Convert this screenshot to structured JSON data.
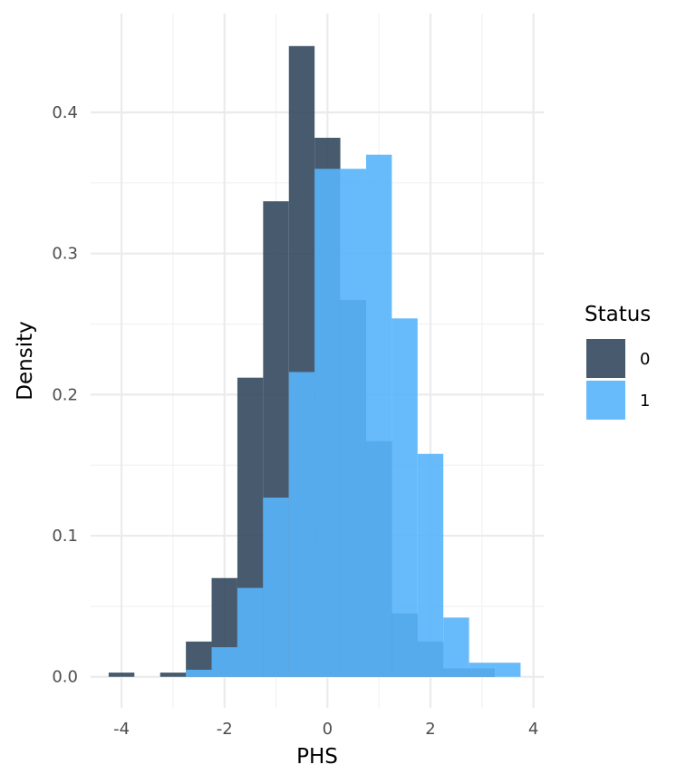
{
  "chart_data": {
    "type": "histogram",
    "xlabel": "PHS",
    "ylabel": "Density",
    "xlim": [
      -4.6,
      4.2
    ],
    "ylim": [
      -0.022,
      0.47
    ],
    "x_ticks": [
      -4,
      -2,
      0,
      2,
      4
    ],
    "x_tick_labels": [
      "-4",
      "-2",
      "0",
      "2",
      "4"
    ],
    "y_ticks": [
      0.0,
      0.1,
      0.2,
      0.3,
      0.4
    ],
    "y_tick_labels": [
      "0.0",
      "0.1",
      "0.2",
      "0.3",
      "0.4"
    ],
    "grid": true,
    "legend_position": "right",
    "legend_title": "Status",
    "bin_edges": [
      -4.25,
      -3.75,
      -3.25,
      -2.75,
      -2.25,
      -1.75,
      -1.25,
      -0.75,
      -0.25,
      0.25,
      0.75,
      1.25,
      1.75,
      2.25,
      2.75,
      3.25,
      3.75
    ],
    "series": [
      {
        "name": "0",
        "color": "#34495e",
        "values": [
          0.003,
          0.0,
          0.003,
          0.025,
          0.07,
          0.212,
          0.337,
          0.447,
          0.382,
          0.267,
          0.167,
          0.045,
          0.025,
          0.006,
          0.006,
          0.0
        ]
      },
      {
        "name": "1",
        "color": "#56b4f9",
        "values": [
          0.0,
          0.0,
          0.0,
          0.005,
          0.021,
          0.063,
          0.127,
          0.216,
          0.36,
          0.36,
          0.37,
          0.254,
          0.158,
          0.042,
          0.01,
          0.01
        ]
      }
    ]
  }
}
